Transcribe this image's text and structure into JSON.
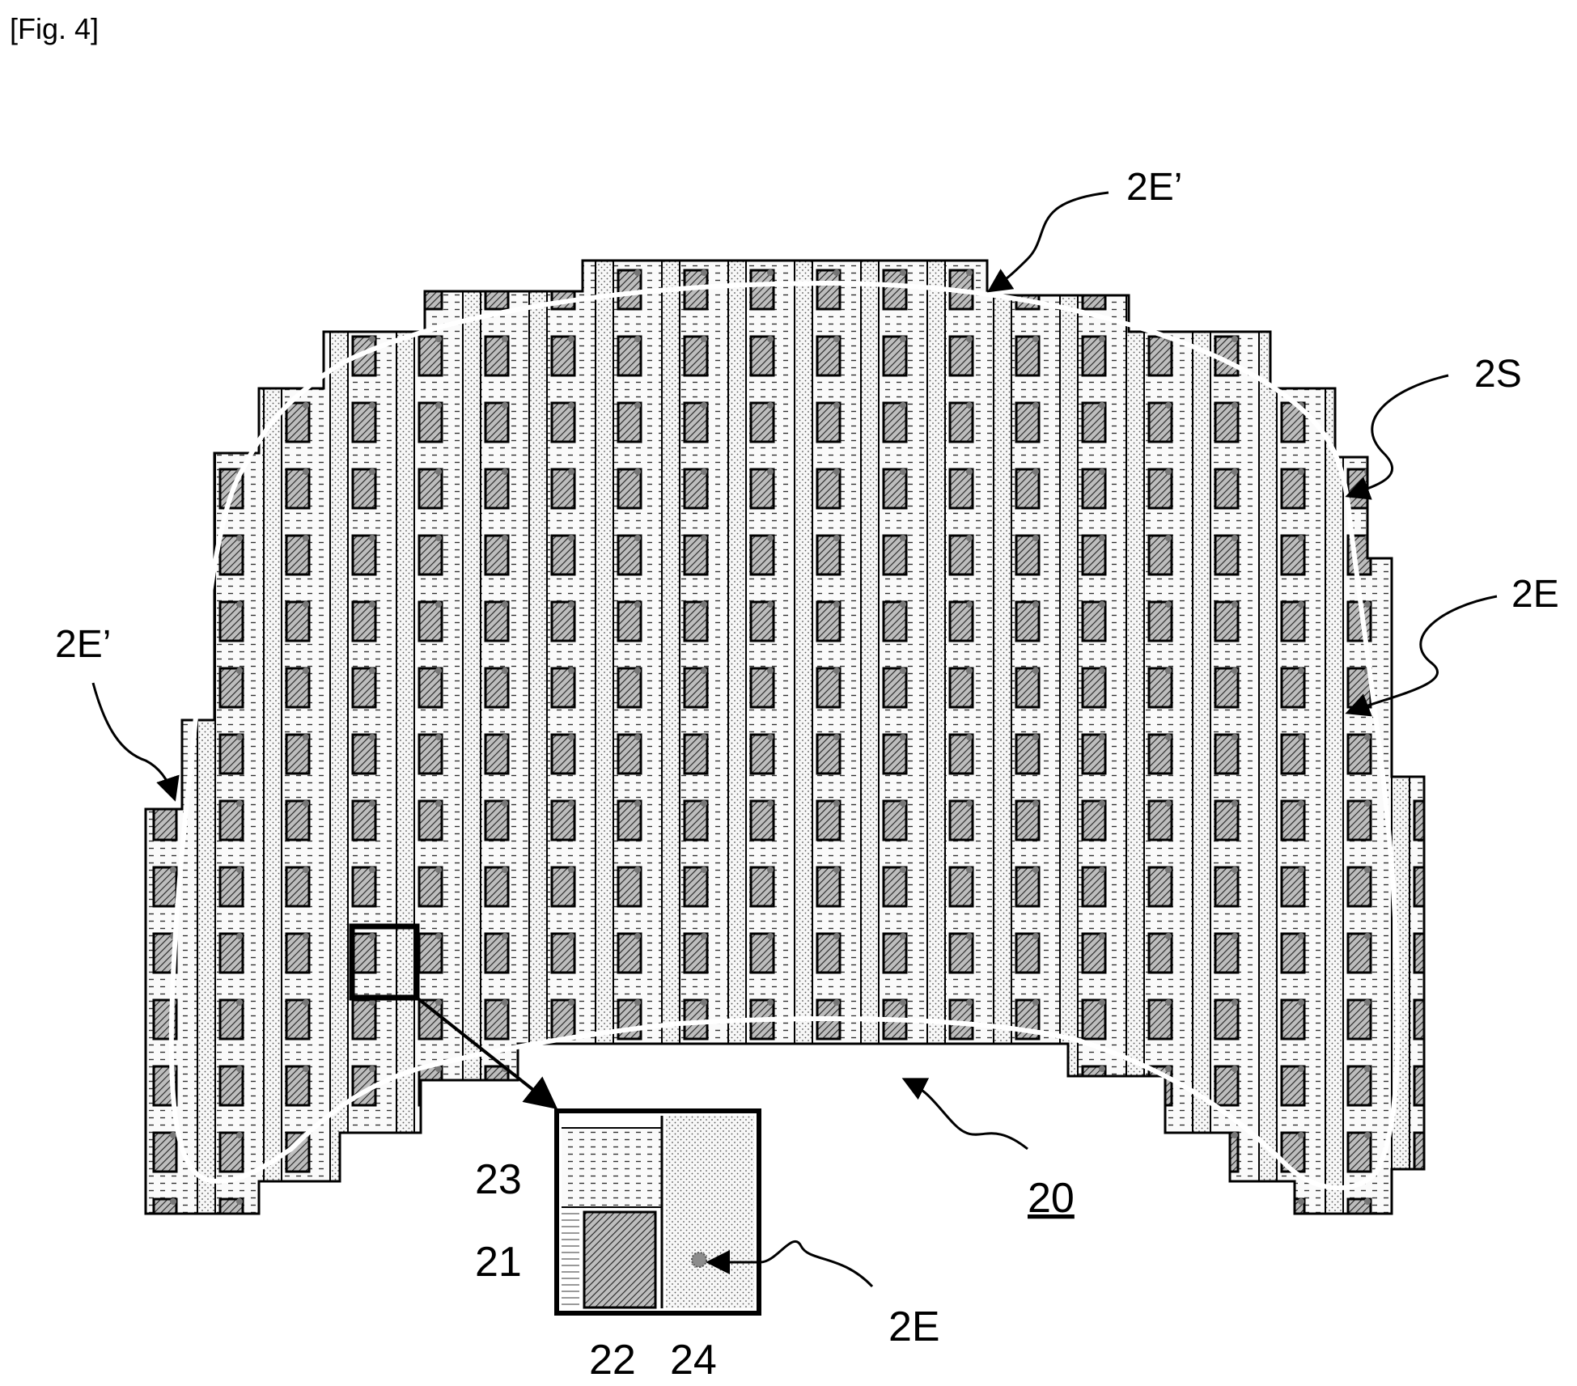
{
  "caption": "[Fig. 4]",
  "labels": {
    "top_edge": "2E’",
    "surface": "2S",
    "right_edge": "2E",
    "left_edge": "2E’",
    "reference": "20",
    "inset_top": "23",
    "inset_mid": "21",
    "inset_bottom_left": "22",
    "inset_bottom_right": "24",
    "inset_arrow": "2E"
  },
  "colors": {
    "stroke": "#000000",
    "light_fill": "#f2f2f2",
    "dark_fill": "#9a9a9a",
    "outline": "#ffffff"
  }
}
